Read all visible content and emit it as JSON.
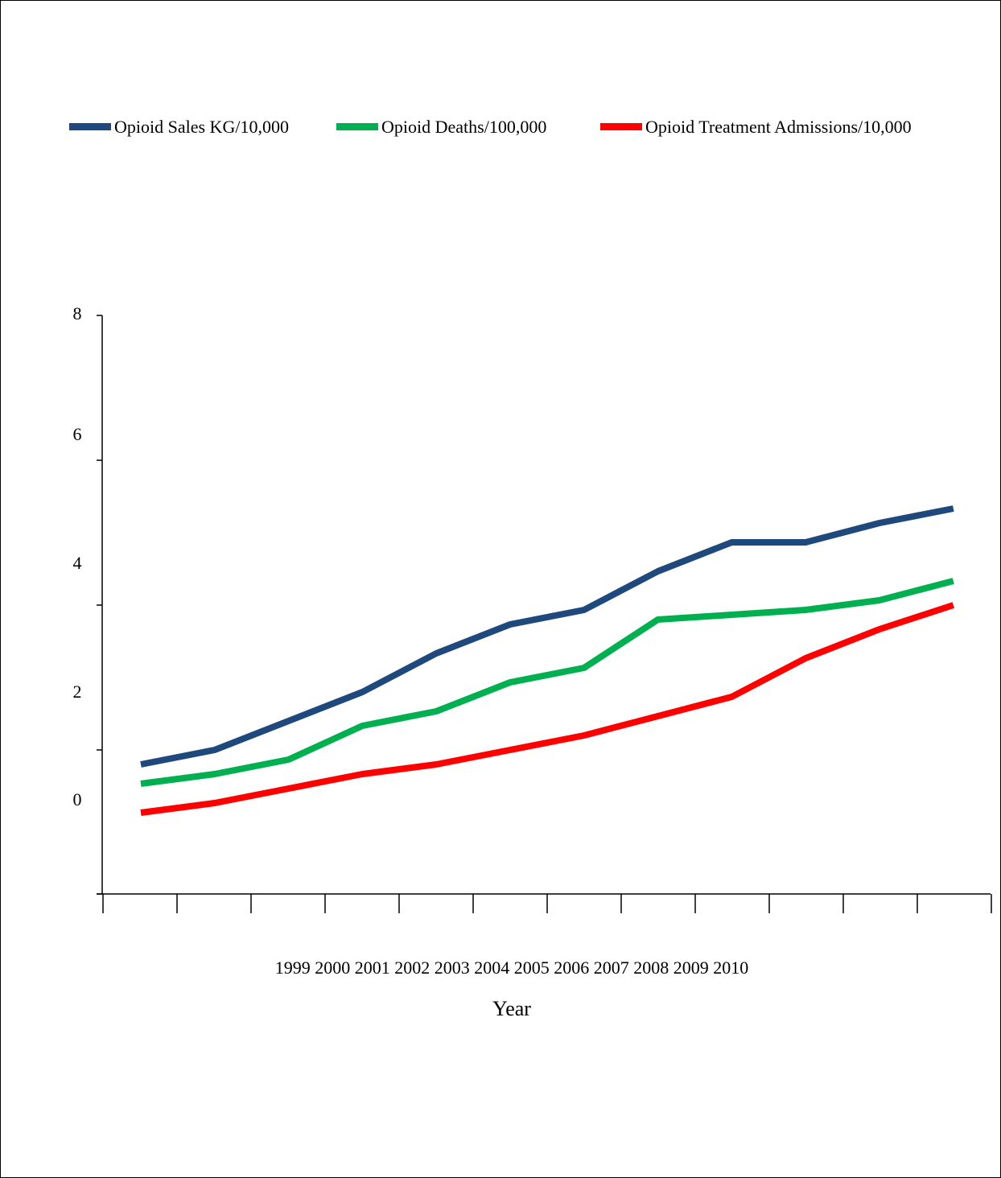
{
  "chart_data": {
    "type": "line",
    "title": "",
    "xlabel": "Year",
    "ylabel": "",
    "x_tick_text": "1999 2000 2001 2002 2003 2004 2005 2006 2007 2008 2009 2010",
    "y_ticks": [
      {
        "value": 8,
        "label": "8"
      },
      {
        "value": 6,
        "label": "6"
      },
      {
        "value": 4,
        "label": "4"
      },
      {
        "value": 2,
        "label": "2"
      },
      {
        "value": 0,
        "label": "0"
      }
    ],
    "legend_position": "top",
    "series": [
      {
        "name": "Opioid Sales KG/10,000",
        "color": "#1f497d",
        "values": [
          0.7,
          1.0,
          1.6,
          2.2,
          3.0,
          3.6,
          3.9,
          4.7,
          5.3,
          5.3,
          5.7,
          6.0
        ]
      },
      {
        "name": "Opioid Deaths/100,000",
        "color": "#00b050",
        "values": [
          0.3,
          0.5,
          0.8,
          1.5,
          1.8,
          2.4,
          2.7,
          3.7,
          3.8,
          3.9,
          4.1,
          4.5
        ]
      },
      {
        "name": "Opioid Treatment Admissions/10,000",
        "color": "#ff0000",
        "values": [
          -0.3,
          -0.1,
          0.2,
          0.5,
          0.7,
          1.0,
          1.3,
          1.7,
          2.1,
          2.9,
          3.5,
          4.0
        ]
      }
    ]
  }
}
